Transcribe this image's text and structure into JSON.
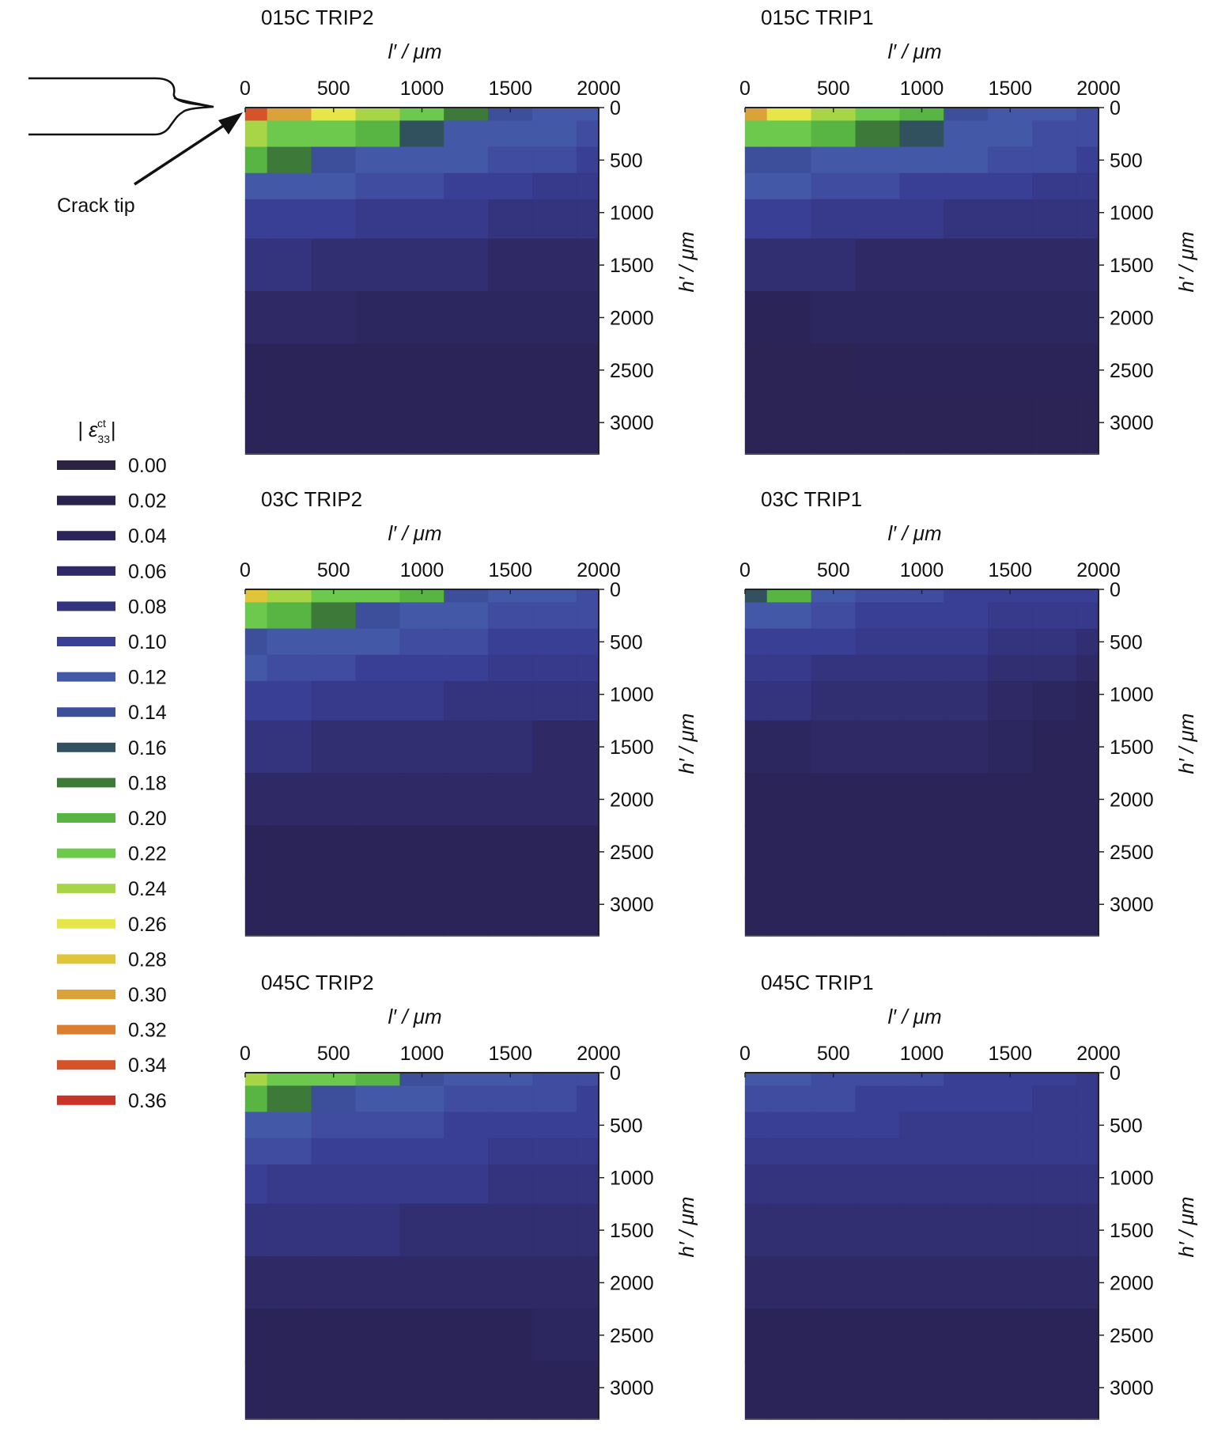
{
  "figure": {
    "crack_label": "Crack tip",
    "legend_title_prefix": "| ε",
    "legend_title_sup": "ct",
    "legend_title_sub": "33",
    "legend_title_suffix": "|"
  },
  "legend": {
    "levels": [
      "0.00",
      "0.02",
      "0.04",
      "0.06",
      "0.08",
      "0.10",
      "0.12",
      "0.14",
      "0.16",
      "0.18",
      "0.20",
      "0.22",
      "0.24",
      "0.26",
      "0.28",
      "0.30",
      "0.32",
      "0.34",
      "0.36"
    ],
    "colors": [
      "#2c2342",
      "#2a2350",
      "#2b2458",
      "#2f2a66",
      "#33337e",
      "#3a3f96",
      "#4458a8",
      "#3d4f9a",
      "#31515f",
      "#3d7a3a",
      "#58b544",
      "#6dc94e",
      "#a8d448",
      "#e6e64a",
      "#e0c43a",
      "#dca23a",
      "#da7f30",
      "#d4532a",
      "#c83228"
    ]
  },
  "chart_data": [
    {
      "type": "heatmap",
      "title": "015C TRIP2",
      "xlabel": "l′ / μm",
      "ylabel": "h′ / μm",
      "x_ticks": [
        "0",
        "500",
        "1000",
        "1500",
        "2000"
      ],
      "y_ticks": [
        "0",
        "500",
        "1000",
        "1500",
        "2000",
        "2500",
        "3000"
      ],
      "xlim": [
        0,
        2000
      ],
      "ylim": [
        0,
        3300
      ],
      "x_grid": [
        0,
        250,
        500,
        750,
        1000,
        1250,
        1500,
        1750,
        2000
      ],
      "y_grid": [
        0,
        250,
        500,
        750,
        1000,
        1500,
        2000,
        2500,
        3000
      ],
      "values": [
        [
          0.34,
          0.3,
          0.26,
          0.24,
          0.22,
          0.18,
          0.14,
          0.12,
          0.12
        ],
        [
          0.24,
          0.22,
          0.22,
          0.2,
          0.16,
          0.12,
          0.12,
          0.12,
          0.11
        ],
        [
          0.2,
          0.18,
          0.14,
          0.12,
          0.12,
          0.12,
          0.11,
          0.11,
          0.1
        ],
        [
          0.12,
          0.12,
          0.12,
          0.11,
          0.11,
          0.1,
          0.1,
          0.09,
          0.09
        ],
        [
          0.1,
          0.1,
          0.1,
          0.09,
          0.09,
          0.09,
          0.08,
          0.08,
          0.08
        ],
        [
          0.08,
          0.08,
          0.07,
          0.07,
          0.07,
          0.07,
          0.06,
          0.06,
          0.06
        ],
        [
          0.06,
          0.06,
          0.06,
          0.05,
          0.05,
          0.05,
          0.05,
          0.05,
          0.05
        ],
        [
          0.04,
          0.04,
          0.04,
          0.04,
          0.04,
          0.04,
          0.04,
          0.04,
          0.04
        ],
        [
          0.04,
          0.04,
          0.04,
          0.04,
          0.04,
          0.04,
          0.04,
          0.04,
          0.04
        ]
      ]
    },
    {
      "type": "heatmap",
      "title": "015C TRIP1",
      "xlabel": "l′ / μm",
      "ylabel": "h′ / μm",
      "x_ticks": [
        "0",
        "500",
        "1000",
        "1500",
        "2000"
      ],
      "y_ticks": [
        "0",
        "500",
        "1000",
        "1500",
        "2000",
        "2500",
        "3000"
      ],
      "xlim": [
        0,
        2000
      ],
      "ylim": [
        0,
        3300
      ],
      "x_grid": [
        0,
        250,
        500,
        750,
        1000,
        1250,
        1500,
        1750,
        2000
      ],
      "y_grid": [
        0,
        250,
        500,
        750,
        1000,
        1500,
        2000,
        2500,
        3000
      ],
      "values": [
        [
          0.3,
          0.26,
          0.24,
          0.22,
          0.2,
          0.14,
          0.12,
          0.12,
          0.11
        ],
        [
          0.22,
          0.22,
          0.2,
          0.18,
          0.16,
          0.12,
          0.12,
          0.11,
          0.11
        ],
        [
          0.14,
          0.14,
          0.12,
          0.12,
          0.12,
          0.12,
          0.11,
          0.11,
          0.1
        ],
        [
          0.12,
          0.12,
          0.11,
          0.11,
          0.1,
          0.1,
          0.1,
          0.09,
          0.09
        ],
        [
          0.1,
          0.1,
          0.09,
          0.09,
          0.09,
          0.08,
          0.08,
          0.08,
          0.08
        ],
        [
          0.07,
          0.07,
          0.07,
          0.06,
          0.06,
          0.06,
          0.06,
          0.06,
          0.06
        ],
        [
          0.04,
          0.04,
          0.05,
          0.05,
          0.05,
          0.05,
          0.05,
          0.05,
          0.05
        ],
        [
          0.03,
          0.03,
          0.03,
          0.04,
          0.04,
          0.04,
          0.04,
          0.04,
          0.04
        ],
        [
          0.03,
          0.03,
          0.03,
          0.03,
          0.03,
          0.03,
          0.03,
          0.03,
          0.03
        ]
      ]
    },
    {
      "type": "heatmap",
      "title": "03C TRIP2",
      "xlabel": "l′ / μm",
      "ylabel": "h′ / μm",
      "x_ticks": [
        "0",
        "500",
        "1000",
        "1500",
        "2000"
      ],
      "y_ticks": [
        "0",
        "500",
        "1000",
        "1500",
        "2000",
        "2500",
        "3000"
      ],
      "xlim": [
        0,
        2000
      ],
      "ylim": [
        0,
        3300
      ],
      "x_grid": [
        0,
        250,
        500,
        750,
        1000,
        1250,
        1500,
        1750,
        2000
      ],
      "y_grid": [
        0,
        250,
        500,
        750,
        1000,
        1500,
        2000,
        2500,
        3000
      ],
      "values": [
        [
          0.28,
          0.24,
          0.22,
          0.22,
          0.2,
          0.14,
          0.12,
          0.12,
          0.11
        ],
        [
          0.22,
          0.2,
          0.18,
          0.14,
          0.12,
          0.12,
          0.11,
          0.11,
          0.11
        ],
        [
          0.14,
          0.12,
          0.12,
          0.12,
          0.11,
          0.11,
          0.1,
          0.1,
          0.1
        ],
        [
          0.12,
          0.11,
          0.11,
          0.1,
          0.1,
          0.1,
          0.09,
          0.09,
          0.09
        ],
        [
          0.1,
          0.1,
          0.09,
          0.09,
          0.09,
          0.08,
          0.08,
          0.08,
          0.08
        ],
        [
          0.08,
          0.08,
          0.07,
          0.07,
          0.07,
          0.07,
          0.07,
          0.06,
          0.06
        ],
        [
          0.06,
          0.06,
          0.06,
          0.06,
          0.06,
          0.06,
          0.06,
          0.06,
          0.06
        ],
        [
          0.04,
          0.04,
          0.04,
          0.04,
          0.04,
          0.04,
          0.04,
          0.04,
          0.04
        ],
        [
          0.04,
          0.04,
          0.04,
          0.04,
          0.04,
          0.04,
          0.04,
          0.04,
          0.04
        ]
      ]
    },
    {
      "type": "heatmap",
      "title": "03C TRIP1",
      "xlabel": "l′ / μm",
      "ylabel": "h′ / μm",
      "x_ticks": [
        "0",
        "500",
        "1000",
        "1500",
        "2000"
      ],
      "y_ticks": [
        "0",
        "500",
        "1000",
        "1500",
        "2000",
        "2500",
        "3000"
      ],
      "xlim": [
        0,
        2000
      ],
      "ylim": [
        0,
        3300
      ],
      "x_grid": [
        0,
        250,
        500,
        750,
        1000,
        1250,
        1500,
        1750,
        2000
      ],
      "y_grid": [
        0,
        250,
        500,
        750,
        1000,
        1500,
        2000,
        2500,
        3000
      ],
      "values": [
        [
          0.16,
          0.2,
          0.12,
          0.11,
          0.11,
          0.1,
          0.1,
          0.1,
          0.1
        ],
        [
          0.12,
          0.12,
          0.11,
          0.1,
          0.1,
          0.1,
          0.09,
          0.09,
          0.09
        ],
        [
          0.1,
          0.1,
          0.1,
          0.09,
          0.09,
          0.09,
          0.08,
          0.08,
          0.07
        ],
        [
          0.09,
          0.09,
          0.08,
          0.08,
          0.08,
          0.08,
          0.07,
          0.07,
          0.06
        ],
        [
          0.08,
          0.08,
          0.07,
          0.07,
          0.07,
          0.07,
          0.06,
          0.05,
          0.04
        ],
        [
          0.05,
          0.05,
          0.06,
          0.06,
          0.06,
          0.06,
          0.05,
          0.04,
          0.04
        ],
        [
          0.04,
          0.04,
          0.04,
          0.04,
          0.04,
          0.04,
          0.04,
          0.04,
          0.04
        ],
        [
          0.04,
          0.04,
          0.04,
          0.04,
          0.04,
          0.04,
          0.04,
          0.04,
          0.04
        ],
        [
          0.04,
          0.04,
          0.04,
          0.04,
          0.04,
          0.04,
          0.04,
          0.04,
          0.04
        ]
      ]
    },
    {
      "type": "heatmap",
      "title": "045C TRIP2",
      "xlabel": "l′ / μm",
      "ylabel": "h′ / μm",
      "x_ticks": [
        "0",
        "500",
        "1000",
        "1500",
        "2000"
      ],
      "y_ticks": [
        "0",
        "500",
        "1000",
        "1500",
        "2000",
        "2500",
        "3000"
      ],
      "xlim": [
        0,
        2000
      ],
      "ylim": [
        0,
        3300
      ],
      "x_grid": [
        0,
        250,
        500,
        750,
        1000,
        1250,
        1500,
        1750,
        2000
      ],
      "y_grid": [
        0,
        250,
        500,
        750,
        1000,
        1500,
        2000,
        2500,
        3000
      ],
      "values": [
        [
          0.24,
          0.22,
          0.22,
          0.2,
          0.14,
          0.12,
          0.12,
          0.11,
          0.11
        ],
        [
          0.2,
          0.18,
          0.14,
          0.12,
          0.12,
          0.11,
          0.11,
          0.11,
          0.1
        ],
        [
          0.12,
          0.12,
          0.11,
          0.11,
          0.11,
          0.1,
          0.1,
          0.1,
          0.1
        ],
        [
          0.11,
          0.11,
          0.1,
          0.1,
          0.1,
          0.1,
          0.09,
          0.09,
          0.09
        ],
        [
          0.1,
          0.09,
          0.09,
          0.09,
          0.09,
          0.09,
          0.08,
          0.08,
          0.08
        ],
        [
          0.08,
          0.08,
          0.08,
          0.08,
          0.07,
          0.07,
          0.07,
          0.07,
          0.07
        ],
        [
          0.06,
          0.06,
          0.06,
          0.06,
          0.06,
          0.06,
          0.06,
          0.06,
          0.06
        ],
        [
          0.04,
          0.04,
          0.04,
          0.04,
          0.04,
          0.04,
          0.04,
          0.05,
          0.05
        ],
        [
          0.04,
          0.04,
          0.04,
          0.04,
          0.04,
          0.04,
          0.04,
          0.04,
          0.04
        ]
      ]
    },
    {
      "type": "heatmap",
      "title": "045C TRIP1",
      "xlabel": "l′ / μm",
      "ylabel": "h′ / μm",
      "x_ticks": [
        "0",
        "500",
        "1000",
        "1500",
        "2000"
      ],
      "y_ticks": [
        "0",
        "500",
        "1000",
        "1500",
        "2000",
        "2500",
        "3000"
      ],
      "xlim": [
        0,
        2000
      ],
      "ylim": [
        0,
        3300
      ],
      "x_grid": [
        0,
        250,
        500,
        750,
        1000,
        1250,
        1500,
        1750,
        2000
      ],
      "y_grid": [
        0,
        250,
        500,
        750,
        1000,
        1500,
        2000,
        2500,
        3000
      ],
      "values": [
        [
          0.12,
          0.12,
          0.11,
          0.11,
          0.11,
          0.1,
          0.1,
          0.1,
          0.09
        ],
        [
          0.11,
          0.11,
          0.11,
          0.1,
          0.1,
          0.1,
          0.1,
          0.09,
          0.09
        ],
        [
          0.1,
          0.1,
          0.1,
          0.1,
          0.09,
          0.09,
          0.09,
          0.09,
          0.09
        ],
        [
          0.09,
          0.09,
          0.09,
          0.09,
          0.09,
          0.09,
          0.09,
          0.09,
          0.09
        ],
        [
          0.08,
          0.08,
          0.08,
          0.08,
          0.08,
          0.08,
          0.08,
          0.08,
          0.08
        ],
        [
          0.07,
          0.07,
          0.07,
          0.07,
          0.07,
          0.07,
          0.07,
          0.07,
          0.07
        ],
        [
          0.06,
          0.06,
          0.06,
          0.06,
          0.06,
          0.06,
          0.06,
          0.06,
          0.06
        ],
        [
          0.04,
          0.04,
          0.04,
          0.04,
          0.04,
          0.04,
          0.04,
          0.04,
          0.04
        ],
        [
          0.04,
          0.04,
          0.04,
          0.04,
          0.04,
          0.04,
          0.04,
          0.04,
          0.04
        ]
      ]
    }
  ]
}
